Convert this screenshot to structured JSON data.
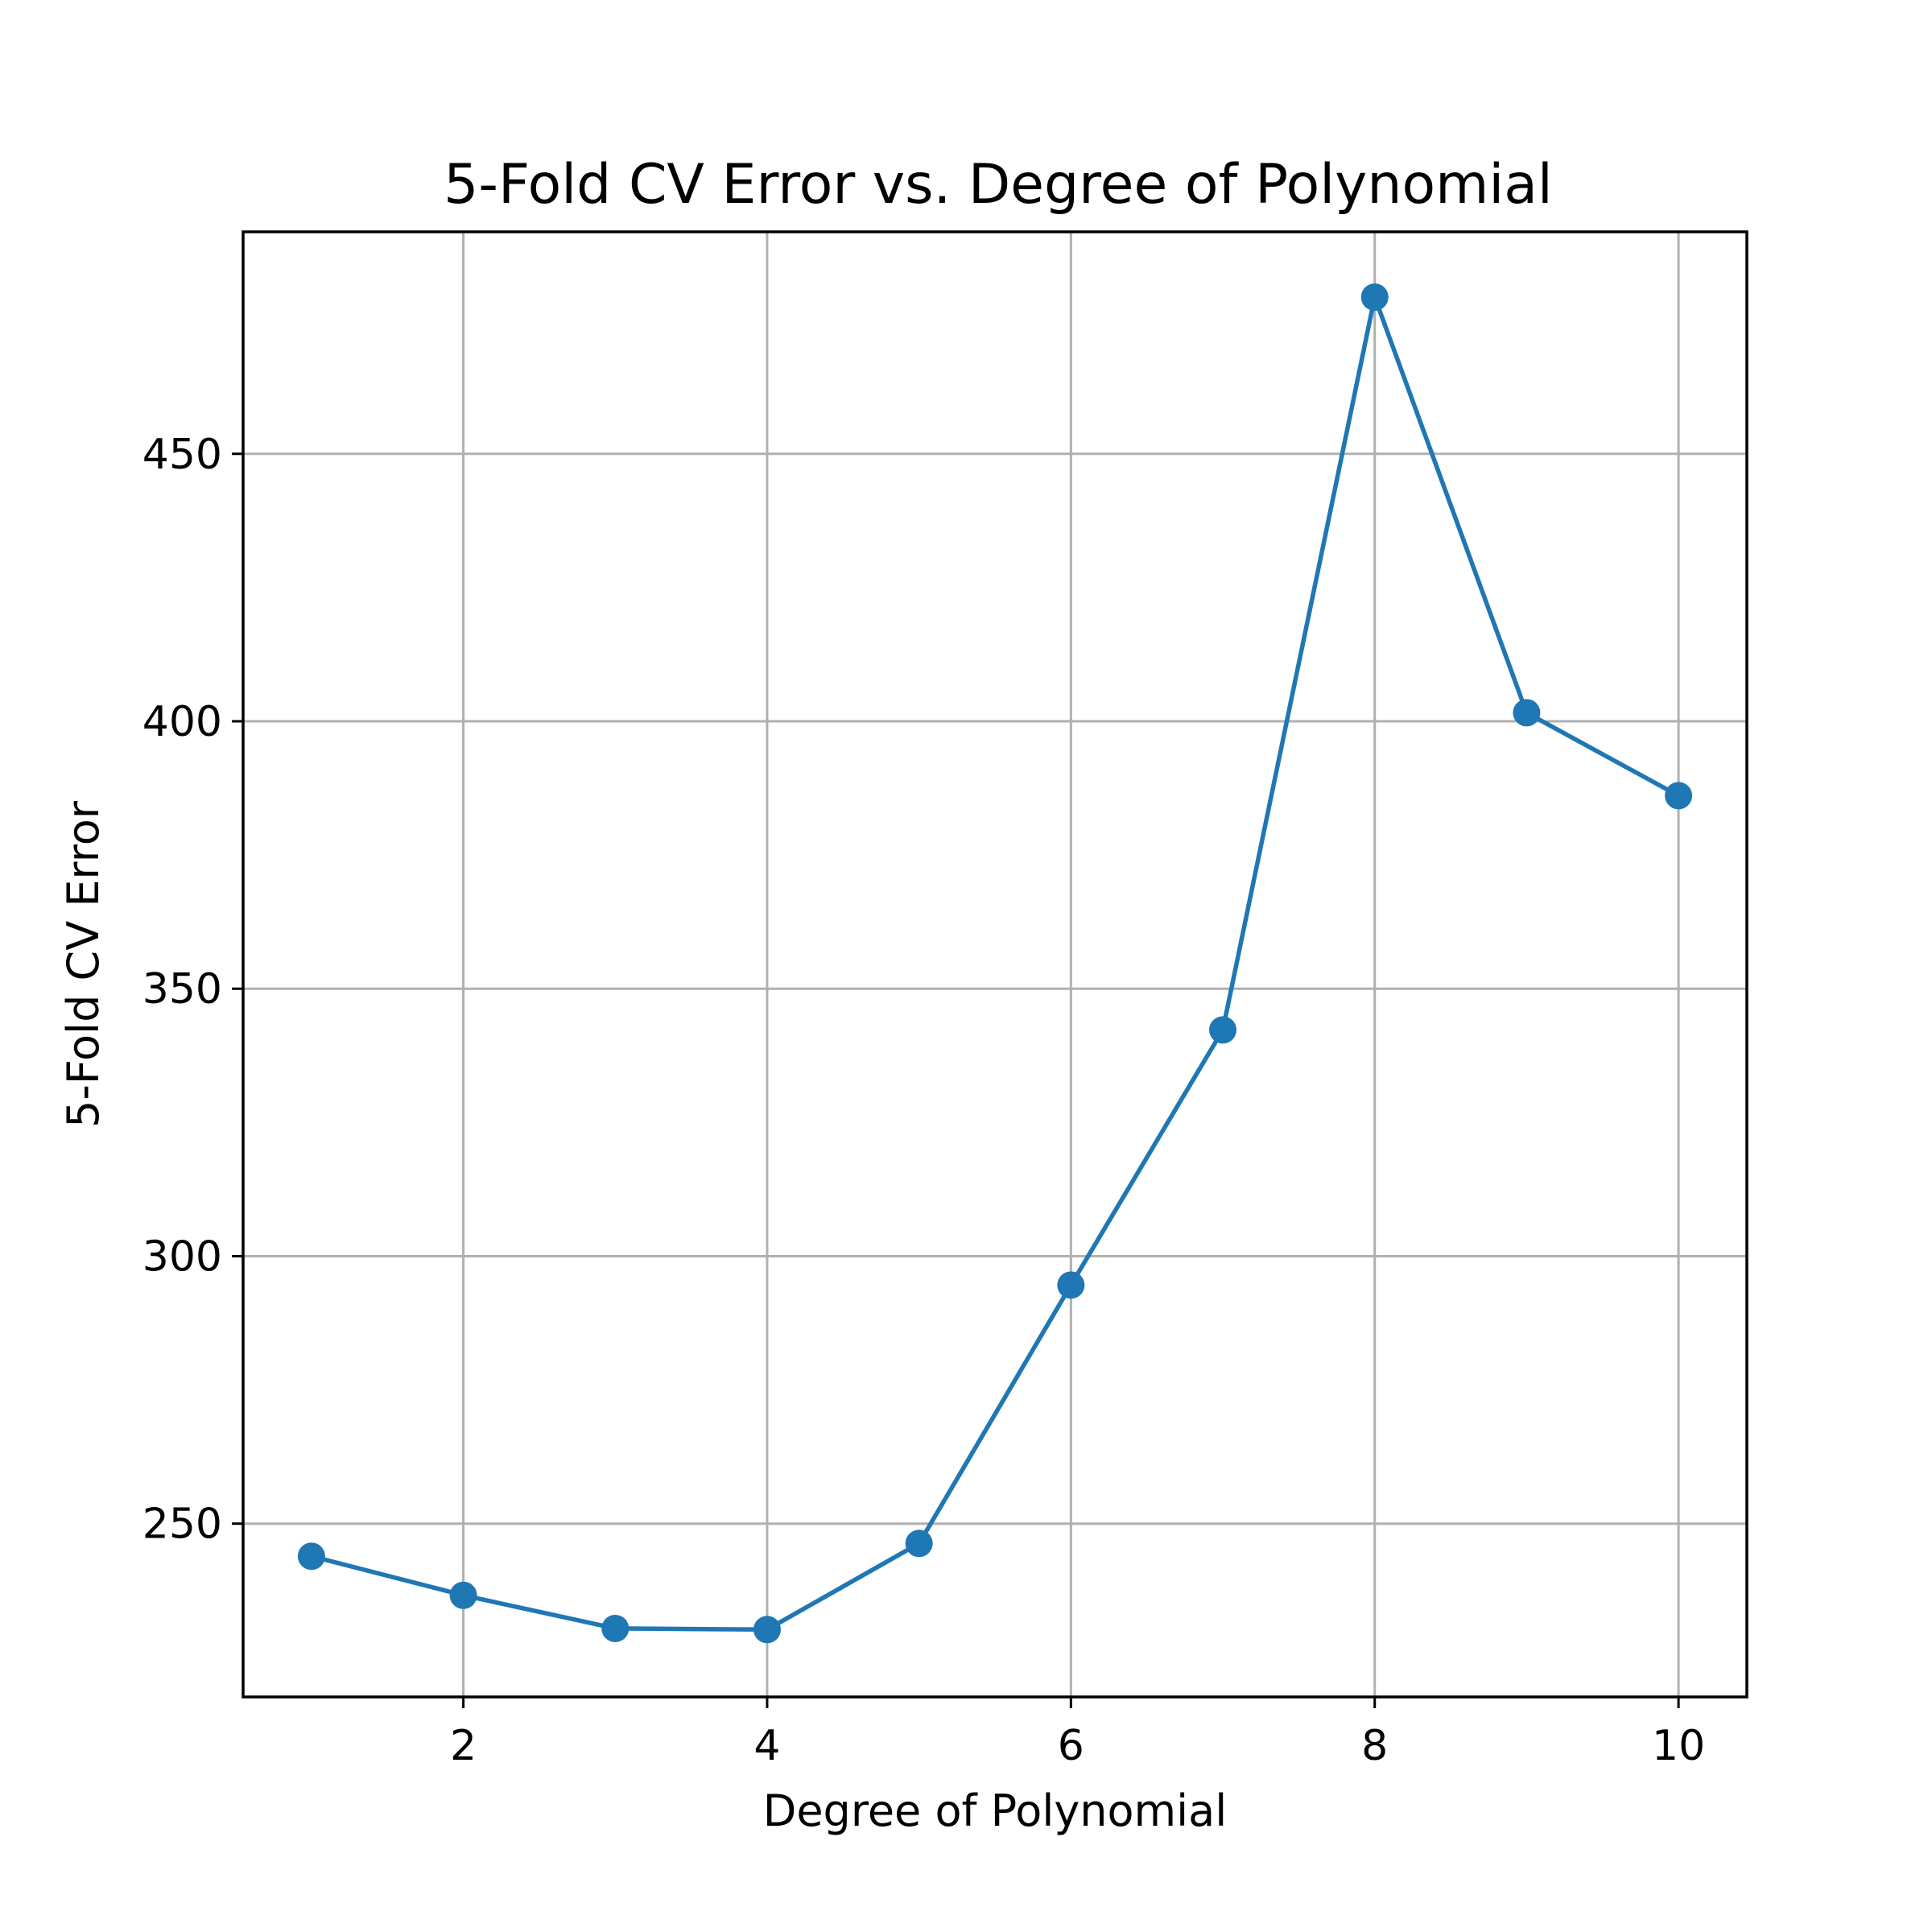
{
  "chart_data": {
    "type": "line",
    "title": "5-Fold CV Error vs. Degree of Polynomial",
    "xlabel": "Degree of Polynomial",
    "ylabel": "5-Fold CV Error",
    "x": [
      1,
      2,
      3,
      4,
      5,
      6,
      7,
      8,
      9,
      10
    ],
    "series": [
      {
        "values": [
          243.9,
          236.6,
          230.4,
          230.2,
          246.3,
          294.6,
          342.3,
          479.3,
          401.6,
          386.1
        ]
      }
    ],
    "xlim": [
      0.55,
      10.45
    ],
    "ylim": [
      217.6,
      491.5
    ],
    "xticks": [
      2,
      4,
      6,
      8,
      10
    ],
    "yticks": [
      250,
      300,
      350,
      400,
      450
    ],
    "grid": true,
    "legend": "none",
    "color": "#1f77b4"
  }
}
